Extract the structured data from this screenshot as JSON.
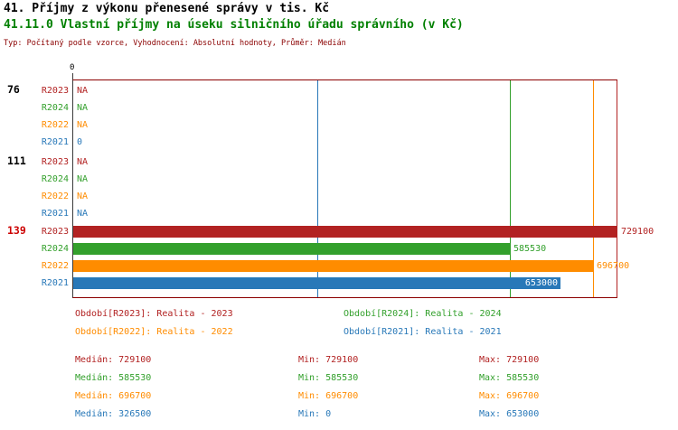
{
  "titles": {
    "line1": "41. Příjmy z výkonu přenesené správy v tis. Kč",
    "line2": "41.11.0 Vlastní příjmy na úseku silničního úřadu správního (v Kč)",
    "subtitle": "Typ: Počítaný podle vzorce, Vyhodnocení: Absolutní hodnoty, Průměr: Medián"
  },
  "colors": {
    "title2": "#008000",
    "subtitle": "#8b0000",
    "axis": "#3a3a3a",
    "frame": "#8b0000"
  },
  "chart_data": {
    "type": "bar",
    "orientation": "horizontal",
    "x_axis": {
      "origin_label": "0",
      "min": 0,
      "max": 729100
    },
    "series_colors": {
      "R2023": "#b22222",
      "R2024": "#33a02c",
      "R2022": "#ff8c00",
      "R2021": "#2878b8"
    },
    "groups": [
      {
        "label": "76",
        "label_color": "#000000",
        "rows": [
          {
            "series": "R2023",
            "value": null,
            "display": "NA"
          },
          {
            "series": "R2024",
            "value": null,
            "display": "NA"
          },
          {
            "series": "R2022",
            "value": null,
            "display": "NA"
          },
          {
            "series": "R2021",
            "value": 0,
            "display": "0"
          }
        ]
      },
      {
        "label": "111",
        "label_color": "#000000",
        "rows": [
          {
            "series": "R2023",
            "value": null,
            "display": "NA"
          },
          {
            "series": "R2024",
            "value": null,
            "display": "NA"
          },
          {
            "series": "R2022",
            "value": null,
            "display": "NA"
          },
          {
            "series": "R2021",
            "value": null,
            "display": "NA"
          }
        ]
      },
      {
        "label": "139",
        "label_color": "#cc0000",
        "rows": [
          {
            "series": "R2023",
            "value": 729100,
            "display": "729100"
          },
          {
            "series": "R2024",
            "value": 585530,
            "display": "585530"
          },
          {
            "series": "R2022",
            "value": 696700,
            "display": "696700"
          },
          {
            "series": "R2021",
            "value": 653000,
            "display": "653000",
            "label_inside": true
          }
        ]
      }
    ],
    "median_lines": [
      {
        "series": "R2021",
        "value": 326500,
        "color": "#2878b8"
      },
      {
        "series": "R2024",
        "value": 585530,
        "color": "#33a02c"
      },
      {
        "series": "R2022",
        "value": 696700,
        "color": "#ff8c00"
      },
      {
        "series": "R2023",
        "value": 729100,
        "color": "#b22222"
      }
    ]
  },
  "legend": [
    {
      "label": "Období[R2023]: Realita - 2023",
      "color": "#b22222"
    },
    {
      "label": "Období[R2024]: Realita - 2024",
      "color": "#33a02c"
    },
    {
      "label": "Období[R2022]: Realita - 2022",
      "color": "#ff8c00"
    },
    {
      "label": "Období[R2021]: Realita - 2021",
      "color": "#2878b8"
    }
  ],
  "stats": [
    {
      "median": "Medián: 729100",
      "min": "Min: 729100",
      "max": "Max: 729100",
      "color": "#b22222"
    },
    {
      "median": "Medián: 585530",
      "min": "Min: 585530",
      "max": "Max: 585530",
      "color": "#33a02c"
    },
    {
      "median": "Medián: 696700",
      "min": "Min: 696700",
      "max": "Max: 696700",
      "color": "#ff8c00"
    },
    {
      "median": "Medián: 326500",
      "min": "Min: 0",
      "max": "Max: 653000",
      "color": "#2878b8"
    }
  ]
}
